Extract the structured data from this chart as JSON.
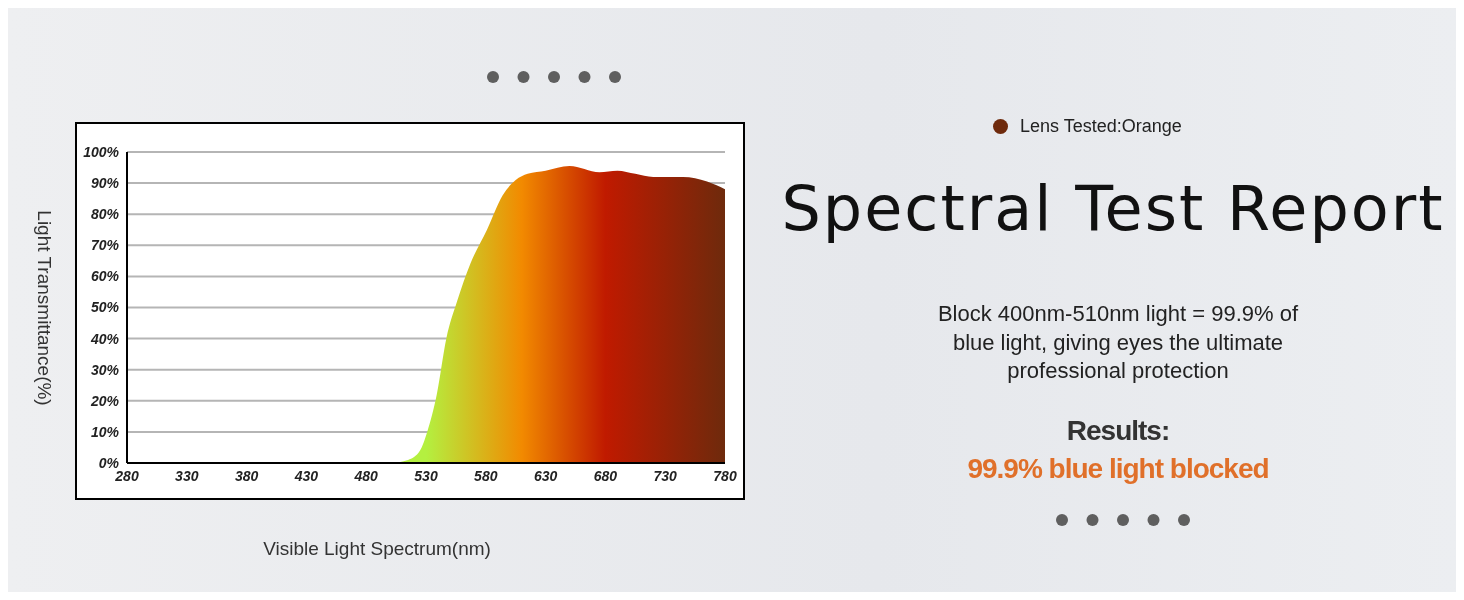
{
  "chart_data": {
    "type": "area",
    "title": "Spectral Test Report",
    "xlabel": "Visible Light Spectrum(nm)",
    "ylabel": "Light Transmittance(%)",
    "annotations": [
      "Block 400nm-510nm light = 99.9% of blue light, giving eyes the ultimate professional protection",
      "Results:",
      "99.9% blue light blocked"
    ],
    "x": [
      280,
      500,
      515,
      525,
      531,
      539,
      547,
      556,
      567,
      581,
      594,
      605,
      615,
      630,
      650,
      675,
      690,
      705,
      720,
      745,
      765,
      780
    ],
    "series": [
      {
        "name": "Lens Tested:Orange",
        "color": "#6e2a0c",
        "values": [
          0,
          0,
          1,
          4,
          10,
          22,
          40,
          52,
          64,
          75,
          86,
          91,
          93,
          94,
          95.5,
          93.5,
          94,
          93,
          92,
          92,
          90.5,
          88
        ]
      }
    ],
    "xlim": [
      280,
      780
    ],
    "xticks": [
      280,
      330,
      380,
      430,
      480,
      530,
      580,
      630,
      680,
      730,
      780
    ],
    "ylim": [
      0,
      100
    ],
    "yticks": [
      {
        "value": 0,
        "label": "0%"
      },
      {
        "value": 10,
        "label": "10%"
      },
      {
        "value": 20,
        "label": "20%"
      },
      {
        "value": 30,
        "label": "30%"
      },
      {
        "value": 40,
        "label": "40%"
      },
      {
        "value": 50,
        "label": "50%"
      },
      {
        "value": 60,
        "label": "60%"
      },
      {
        "value": 70,
        "label": "70%"
      },
      {
        "value": 80,
        "label": "80%"
      },
      {
        "value": 90,
        "label": "90%"
      },
      {
        "value": 100,
        "label": "100%"
      }
    ],
    "grid": "y",
    "legend": "top right",
    "marker": "none"
  }
}
